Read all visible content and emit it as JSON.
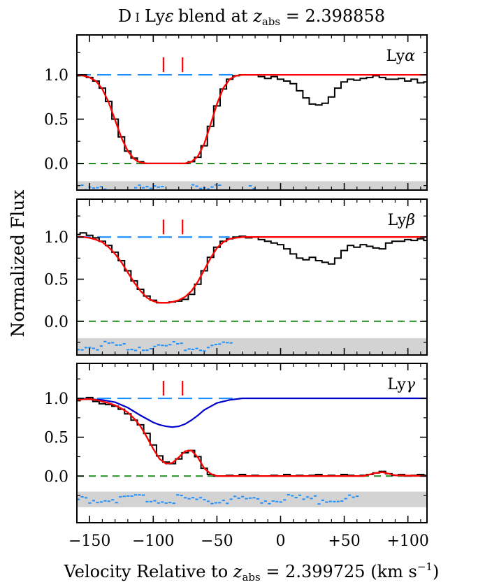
{
  "chart_data": {
    "type": "line",
    "title": {
      "prefix": "D",
      "roman": "I",
      "line": "Ly",
      "line_sym": "ε",
      "mid": "blend at ",
      "z": "z",
      "z_sub": "abs",
      "eq": " = 2.398858"
    },
    "xlabel": {
      "prefix": "Velocity Relative to ",
      "z": "z",
      "z_sub": "abs",
      "eq": " = 2.399725 (km s",
      "sup": "−1",
      "close": ")"
    },
    "ylabel": "Normalized Flux",
    "xlim": [
      -160,
      115
    ],
    "x_ticks": [
      -150,
      -100,
      -50,
      0,
      50,
      100
    ],
    "x_tick_labels": [
      "−150",
      "−100",
      "−50",
      "0",
      "+50",
      "+100"
    ],
    "y_ticks": [
      0.0,
      0.5,
      1.0
    ],
    "y_tick_labels": [
      "0.0",
      "0.5",
      "1.0"
    ],
    "colors": {
      "data": "#000000",
      "model": "#ff0000",
      "component": "#0000cc",
      "continuum": "#1e90ff",
      "zero": "#228b22",
      "residual": "#1e90ff",
      "band": "#d3d3d3",
      "ticks": "#ff0000"
    },
    "panels": [
      {
        "label": {
          "base": "Ly",
          "sym": "α"
        },
        "ylim": [
          -0.3,
          1.45
        ],
        "component_ticks": [
          -92,
          -77
        ],
        "continuum_x": [
          -160,
          -35
        ],
        "residual_x": [
          -160,
          -22
        ],
        "data_x": [
          -160,
          -155,
          -150,
          -145,
          -140,
          -135,
          -130,
          -125,
          -120,
          -115,
          -110,
          -105,
          -100,
          -95,
          -90,
          -85,
          -80,
          -75,
          -70,
          -65,
          -60,
          -55,
          -50,
          -45,
          -40,
          -35,
          -30,
          -25,
          -20,
          -15,
          -10,
          -5,
          0,
          5,
          10,
          15,
          20,
          25,
          30,
          35,
          40,
          45,
          50,
          55,
          60,
          65,
          70,
          75,
          80,
          85,
          90,
          95,
          100,
          105,
          110,
          115
        ],
        "data_y": [
          0.99,
          1.0,
          0.97,
          0.93,
          0.85,
          0.7,
          0.5,
          0.3,
          0.14,
          0.06,
          0.02,
          0.0,
          0.0,
          0.0,
          0.0,
          0.0,
          0.0,
          0.0,
          0.02,
          0.07,
          0.2,
          0.42,
          0.65,
          0.84,
          0.95,
          0.99,
          1.0,
          1.0,
          1.0,
          0.98,
          0.96,
          0.98,
          0.95,
          0.93,
          0.9,
          0.82,
          0.74,
          0.67,
          0.66,
          0.68,
          0.75,
          0.85,
          0.92,
          0.95,
          0.94,
          0.96,
          0.97,
          0.99,
          0.97,
          0.95,
          0.95,
          0.96,
          0.93,
          0.95,
          0.91,
          0.92
        ],
        "model_x": [
          -160,
          -155,
          -150,
          -145,
          -140,
          -135,
          -130,
          -125,
          -120,
          -115,
          -110,
          -105,
          -100,
          -95,
          -90,
          -85,
          -80,
          -75,
          -70,
          -65,
          -60,
          -55,
          -50,
          -45,
          -40,
          -35,
          -30,
          -25,
          -20,
          115
        ],
        "model_y": [
          1.0,
          0.99,
          0.97,
          0.93,
          0.84,
          0.69,
          0.49,
          0.29,
          0.14,
          0.05,
          0.01,
          0.0,
          0.0,
          0.0,
          0.0,
          0.0,
          0.0,
          0.0,
          0.02,
          0.08,
          0.22,
          0.44,
          0.67,
          0.85,
          0.95,
          0.99,
          1.0,
          1.0,
          1.0,
          1.0
        ]
      },
      {
        "label": {
          "base": "Ly",
          "sym": "β"
        },
        "ylim": [
          -0.4,
          1.45
        ],
        "component_ticks": [
          -92,
          -77
        ],
        "continuum_x": [
          -160,
          -40
        ],
        "residual_x": [
          -160,
          -40
        ],
        "data_x": [
          -160,
          -155,
          -150,
          -145,
          -140,
          -135,
          -130,
          -125,
          -120,
          -115,
          -110,
          -105,
          -100,
          -95,
          -90,
          -85,
          -80,
          -75,
          -70,
          -65,
          -60,
          -55,
          -50,
          -45,
          -40,
          -35,
          -30,
          -25,
          -20,
          -15,
          -10,
          -5,
          0,
          5,
          10,
          15,
          20,
          25,
          30,
          35,
          40,
          45,
          50,
          55,
          60,
          65,
          70,
          75,
          80,
          85,
          90,
          95,
          100,
          105,
          110,
          115
        ],
        "data_y": [
          1.03,
          1.05,
          1.02,
          0.99,
          0.95,
          0.9,
          0.82,
          0.72,
          0.6,
          0.48,
          0.38,
          0.3,
          0.25,
          0.22,
          0.22,
          0.23,
          0.24,
          0.26,
          0.32,
          0.44,
          0.6,
          0.76,
          0.88,
          0.95,
          0.98,
          1.0,
          1.01,
          0.99,
          1.0,
          0.97,
          0.95,
          0.93,
          0.91,
          0.86,
          0.8,
          0.75,
          0.73,
          0.76,
          0.72,
          0.7,
          0.68,
          0.75,
          0.84,
          0.9,
          0.88,
          0.91,
          0.89,
          0.87,
          0.86,
          0.93,
          0.95,
          0.95,
          0.97,
          0.96,
          0.98,
          0.96
        ],
        "model_x": [
          -160,
          -155,
          -150,
          -145,
          -140,
          -135,
          -130,
          -125,
          -120,
          -115,
          -110,
          -105,
          -100,
          -95,
          -90,
          -85,
          -80,
          -75,
          -70,
          -65,
          -60,
          -55,
          -50,
          -45,
          -40,
          -35,
          -30,
          -25,
          -20,
          115
        ],
        "model_y": [
          1.0,
          1.0,
          0.99,
          0.97,
          0.94,
          0.88,
          0.8,
          0.7,
          0.58,
          0.46,
          0.36,
          0.28,
          0.24,
          0.22,
          0.22,
          0.23,
          0.25,
          0.29,
          0.36,
          0.47,
          0.61,
          0.75,
          0.87,
          0.94,
          0.98,
          0.99,
          1.0,
          1.0,
          1.0,
          1.0
        ]
      },
      {
        "label": {
          "base": "Ly",
          "sym": "γ"
        },
        "ylim": [
          -0.6,
          1.45
        ],
        "component_ticks": [
          -92,
          -77
        ],
        "continuum_x": [
          -160,
          -30
        ],
        "residual_x": [
          -160,
          60
        ],
        "data_x": [
          -160,
          -155,
          -150,
          -145,
          -140,
          -135,
          -130,
          -125,
          -120,
          -115,
          -110,
          -105,
          -100,
          -95,
          -90,
          -85,
          -80,
          -75,
          -70,
          -65,
          -60,
          -55,
          -50,
          -45,
          -40,
          -35,
          -30,
          -25,
          -20,
          -15,
          -10,
          -5,
          0,
          5,
          10,
          15,
          20,
          25,
          30,
          35,
          40,
          45,
          50,
          55,
          60,
          65,
          70,
          75,
          80,
          85,
          90,
          95,
          100,
          105,
          110,
          115
        ],
        "data_y": [
          0.97,
          0.99,
          1.01,
          0.96,
          0.93,
          0.92,
          0.9,
          0.86,
          0.8,
          0.72,
          0.66,
          0.55,
          0.4,
          0.26,
          0.18,
          0.16,
          0.22,
          0.3,
          0.33,
          0.25,
          0.1,
          0.02,
          0.0,
          0.0,
          0.01,
          0.0,
          0.02,
          0.0,
          0.01,
          0.0,
          0.0,
          0.01,
          0.0,
          0.02,
          0.0,
          0.01,
          0.0,
          0.01,
          0.02,
          0.0,
          0.01,
          0.0,
          0.02,
          0.01,
          0.0,
          0.01,
          0.02,
          0.04,
          0.06,
          0.03,
          0.01,
          0.02,
          0.0,
          0.01,
          0.02,
          0.01
        ],
        "model_x": [
          -160,
          -155,
          -150,
          -145,
          -140,
          -135,
          -130,
          -125,
          -120,
          -115,
          -110,
          -105,
          -100,
          -95,
          -90,
          -85,
          -80,
          -75,
          -70,
          -65,
          -60,
          -55,
          -50,
          -45,
          -40,
          -35,
          -30,
          65,
          70,
          75,
          80,
          85,
          90,
          115
        ],
        "model_y": [
          0.98,
          0.99,
          0.99,
          0.98,
          0.96,
          0.94,
          0.91,
          0.87,
          0.82,
          0.74,
          0.64,
          0.5,
          0.35,
          0.22,
          0.16,
          0.17,
          0.24,
          0.32,
          0.33,
          0.24,
          0.1,
          0.03,
          0.0,
          0.0,
          0.0,
          0.0,
          0.0,
          0.0,
          0.02,
          0.04,
          0.05,
          0.03,
          0.01,
          0.0
        ],
        "component_x": [
          -160,
          -150,
          -140,
          -130,
          -120,
          -110,
          -100,
          -95,
          -90,
          -85,
          -80,
          -75,
          -70,
          -65,
          -60,
          -50,
          -40,
          -30,
          -20,
          -10,
          0,
          115
        ],
        "component_y": [
          0.99,
          0.99,
          0.98,
          0.95,
          0.88,
          0.78,
          0.69,
          0.66,
          0.64,
          0.63,
          0.64,
          0.67,
          0.72,
          0.78,
          0.85,
          0.94,
          0.98,
          1.0,
          1.0,
          1.0,
          1.0,
          1.0
        ]
      }
    ]
  }
}
